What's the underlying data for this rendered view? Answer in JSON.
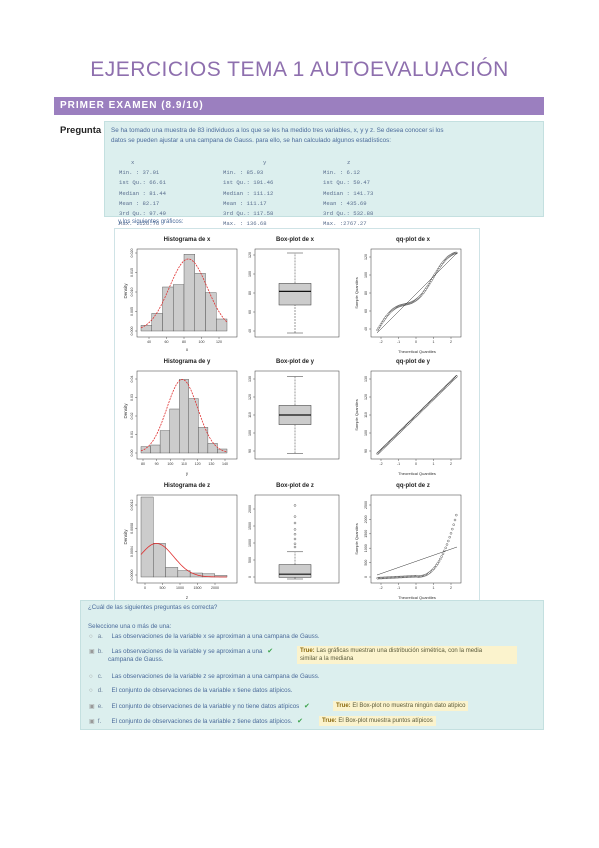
{
  "page": {
    "title": "EJERCICIOS TEMA 1 AUTOEVALUACIÓN",
    "section": "PRIMER EXAMEN (8.9/10)",
    "question_label": "Pregunta 1:"
  },
  "statement": {
    "line1": "Se ha tomado una muestra de 83 individuos a los que se les ha medido tres variables, x, y y z. Se desea conocer si los",
    "line2": "datos se pueden ajustar a una campana de Gauss. para ello, se han calculado algunos estadísticos:",
    "after": "y los siguientes gráficos:"
  },
  "stats": [
    {
      "header": "x",
      "rows": [
        "Min.   : 37.01",
        "1st Qu.: 66.61",
        "Median : 81.44",
        "Mean   : 82.17",
        "3rd Qu.: 97.49",
        "Max.   :126.76"
      ]
    },
    {
      "header": "y",
      "rows": [
        "Min.   : 85.93",
        "1st Qu.: 101.46",
        "Median : 111.12",
        "Mean   : 111.17",
        "3rd Qu.: 117.58",
        "Max.   : 136.68"
      ]
    },
    {
      "header": "z",
      "rows": [
        "Min.   :  6.12",
        "1st Qu.: 50.47",
        "Median : 141.73",
        "Mean   : 435.69",
        "3rd Qu.: 532.88",
        "Max.   :2767.27"
      ]
    }
  ],
  "figure_titles": {
    "hist_x": "Histograma de x",
    "box_x": "Box-plot de x",
    "qq_x": "qq-plot de x",
    "hist_y": "Histograma de y",
    "box_y": "Box-plot de y",
    "qq_y": "qq-plot de y",
    "hist_z": "Histograma de z",
    "box_z": "Box-plot de z",
    "qq_z": "qq-plot de z"
  },
  "figure_labels": {
    "density": "Density",
    "sample_quantiles": "Sample Quantiles",
    "theoretical_quantiles": "Theoretical Quantiles",
    "x": "x",
    "y": "y",
    "z": "z"
  },
  "figure_ticks": {
    "hist_x_x": [
      "40",
      "60",
      "80",
      "100",
      "120"
    ],
    "hist_x_y": [
      "0.000",
      "0.005",
      "0.010",
      "0.015",
      "0.020"
    ],
    "box_x_y": [
      "40",
      "60",
      "80",
      "100",
      "120"
    ],
    "qq_x_x": [
      "-2",
      "-1",
      "0",
      "1",
      "2"
    ],
    "qq_x_y": [
      "40",
      "60",
      "80",
      "100",
      "120"
    ],
    "hist_y_x": [
      "80",
      "90",
      "100",
      "110",
      "120",
      "130",
      "140"
    ],
    "hist_y_y": [
      "0.00",
      "0.01",
      "0.02",
      "0.03",
      "0.04"
    ],
    "box_y_y": [
      "90",
      "100",
      "110",
      "120",
      "130"
    ],
    "qq_y_y": [
      "90",
      "100",
      "110",
      "120",
      "130"
    ],
    "hist_z_x": [
      "0",
      "500",
      "1000",
      "1500",
      "2000"
    ],
    "hist_z_y": [
      "0.0000",
      "0.0004",
      "0.0008",
      "0.0012"
    ],
    "box_z_y": [
      "0",
      "500",
      "1000",
      "1500",
      "2000"
    ],
    "qq_z_y": [
      "0",
      "500",
      "1000",
      "1500",
      "2000",
      "2500"
    ]
  },
  "quiz": {
    "question": "¿Cuál de las siguientes preguntas es correcta?",
    "select_prompt": "Seleccione una o más de una:",
    "options": [
      {
        "letter": "a.",
        "text": "Las observaciones de la variable x se aproximan a una campana de Gauss.",
        "checked": false,
        "correct": false,
        "feedback": ""
      },
      {
        "letter": "b.",
        "text": "Las observaciones de la variable y se aproximan a una",
        "text2": "campana de Gauss.",
        "checked": true,
        "correct": true,
        "feedback_label": "True:",
        "feedback": "Las gráficas muestran una distribución simétrica, con la media",
        "feedback2": "similar a la mediana"
      },
      {
        "letter": "c.",
        "text": "Las observaciones de la variable z se aproximan a una campana de Gauss.",
        "checked": false,
        "correct": false,
        "feedback": ""
      },
      {
        "letter": "d.",
        "text": "El conjunto de observaciones de la variable x tiene datos atípicos.",
        "checked": false,
        "correct": false,
        "feedback": ""
      },
      {
        "letter": "e.",
        "text": "El conjunto de observaciones de la variable y no tiene datos atípicos",
        "checked": true,
        "correct": true,
        "feedback_label": "True:",
        "feedback": "El Box-plot no muestra ningún dato atípico"
      },
      {
        "letter": "f.",
        "text": "El conjunto de observaciones de la variable z tiene datos atípicos.",
        "checked": true,
        "correct": true,
        "feedback_label": "True:",
        "feedback": "El Box-plot muestra puntos atípicos"
      }
    ]
  },
  "colors": {
    "accent": "#9b7fbf",
    "title": "#8e6fae",
    "panel": "#dcefee",
    "feedback_bg": "#fbf3cd",
    "check": "#3aa24a",
    "curve": "#e03030",
    "bar": "#cccccc"
  }
}
